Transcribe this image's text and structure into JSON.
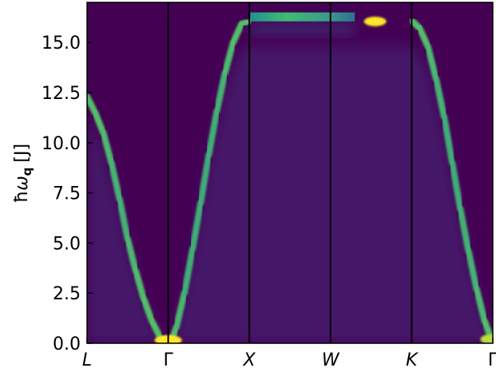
{
  "chart_data": {
    "type": "heatmap",
    "title": "",
    "xlabel": "",
    "ylabel_parts": {
      "hbar": "ħ",
      "omega": "ω",
      "sub": "q",
      "unit": "[J]"
    },
    "ylim": [
      0,
      17
    ],
    "yticks": [
      {
        "value": 0.0,
        "label": "0.0"
      },
      {
        "value": 2.5,
        "label": "2.5"
      },
      {
        "value": 5.0,
        "label": "5.0"
      },
      {
        "value": 7.5,
        "label": "7.5"
      },
      {
        "value": 10.0,
        "label": "10.0"
      },
      {
        "value": 12.5,
        "label": "12.5"
      },
      {
        "value": 15.0,
        "label": "15.0"
      }
    ],
    "kpath": [
      {
        "pos": 0,
        "label": "L"
      },
      {
        "pos": 1,
        "label": "Γ"
      },
      {
        "pos": 2,
        "label": "X"
      },
      {
        "pos": 3,
        "label": "W"
      },
      {
        "pos": 4,
        "label": "K"
      },
      {
        "pos": 5,
        "label": "Γ"
      }
    ],
    "colormap": {
      "background": "#440154",
      "stops": [
        "#440154",
        "#3b528b",
        "#21918c",
        "#5ec962",
        "#fde725"
      ]
    },
    "bands": [
      {
        "name": "",
        "points": [
          [
            0.0,
            12.3
          ],
          [
            0.1,
            11.5
          ],
          [
            0.2,
            10.5
          ],
          [
            0.3,
            9.0
          ],
          [
            0.4,
            7.2
          ],
          [
            0.5,
            5.2
          ],
          [
            0.6,
            3.6
          ],
          [
            0.7,
            2.2
          ],
          [
            0.8,
            1.1
          ],
          [
            0.9,
            0.3
          ],
          [
            0.97,
            0.0
          ],
          [
            1.03,
            0.0
          ],
          [
            1.1,
            0.8
          ],
          [
            1.2,
            2.5
          ],
          [
            1.3,
            4.7
          ],
          [
            1.4,
            7.0
          ],
          [
            1.5,
            9.4
          ],
          [
            1.6,
            11.6
          ],
          [
            1.7,
            13.5
          ],
          [
            1.8,
            15.0
          ],
          [
            1.9,
            15.9
          ],
          [
            2.0,
            16.1
          ],
          [
            2.5,
            16.1
          ],
          [
            3.0,
            16.1
          ],
          [
            3.5,
            16.1
          ],
          [
            4.0,
            16.1
          ],
          [
            4.1,
            15.7
          ],
          [
            4.2,
            14.8
          ],
          [
            4.3,
            13.2
          ],
          [
            4.4,
            11.3
          ],
          [
            4.5,
            9.0
          ],
          [
            4.6,
            6.7
          ],
          [
            4.7,
            4.6
          ],
          [
            4.8,
            2.7
          ],
          [
            4.9,
            1.1
          ],
          [
            5.0,
            0.0
          ]
        ]
      }
    ],
    "upper_band": {
      "x_range": [
        2.0,
        3.3
      ],
      "y_range": [
        16.05,
        16.5
      ]
    },
    "hotspots": [
      {
        "x": 3.55,
        "y": 16.05,
        "intensity": 1.0
      },
      {
        "x": 0.97,
        "y": 0.15,
        "intensity": 1.0
      },
      {
        "x": 1.03,
        "y": 0.15,
        "intensity": 1.0
      },
      {
        "x": 4.97,
        "y": 0.2,
        "intensity": 0.9
      }
    ]
  }
}
